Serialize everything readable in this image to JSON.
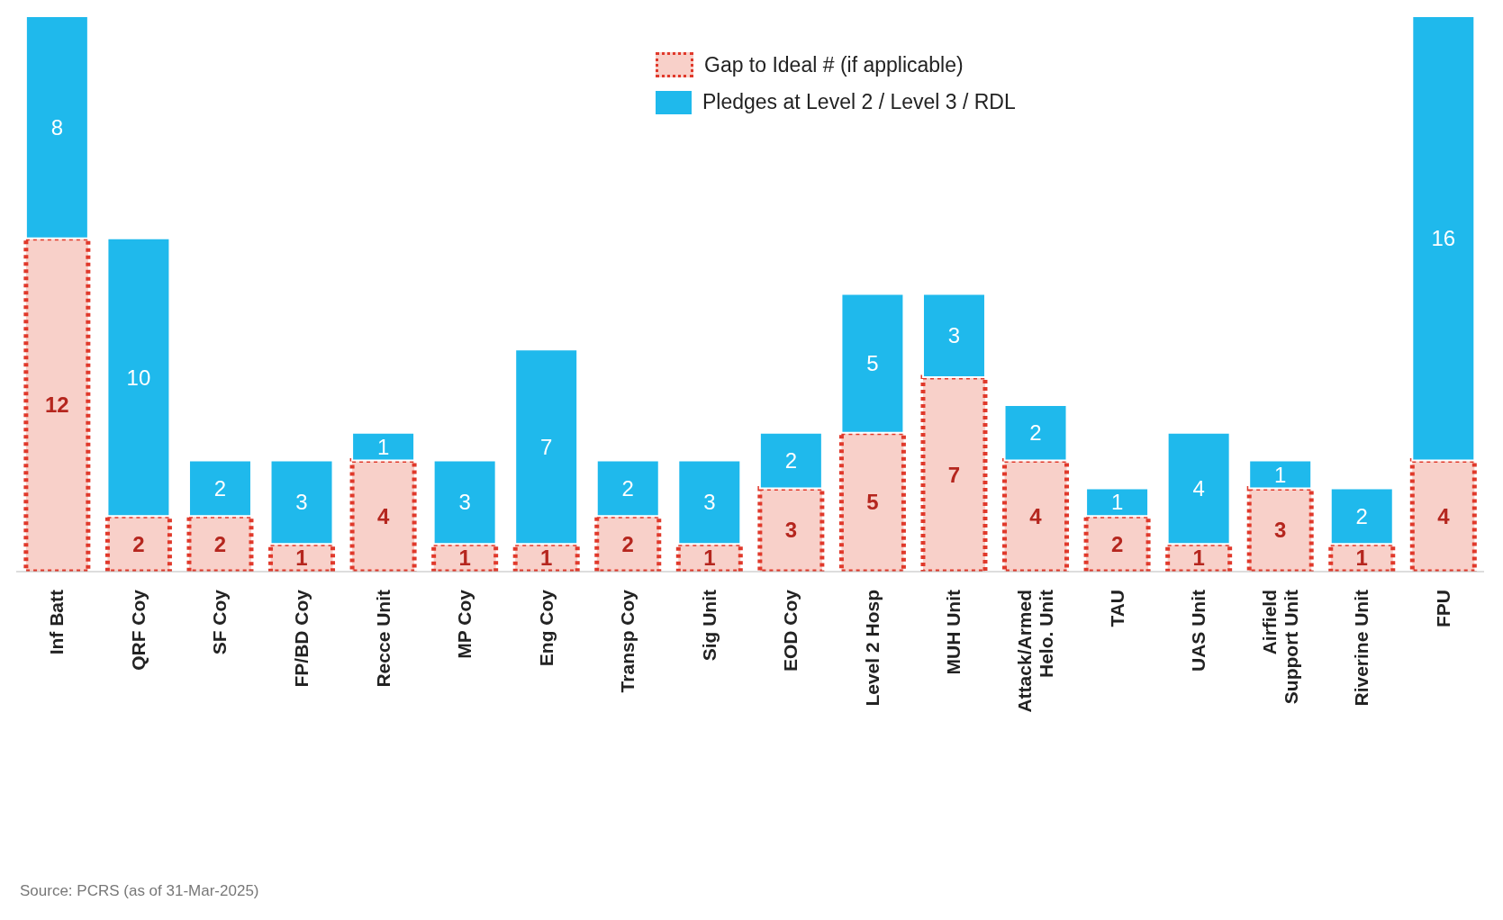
{
  "chart_data": {
    "type": "bar",
    "stacked": true,
    "data_labels": true,
    "legend": "top",
    "grid": false,
    "categories": [
      "Inf Batt",
      "QRF Coy",
      "SF Coy",
      "FP/BD Coy",
      "Recce Unit",
      "MP Coy",
      "Eng Coy",
      "Transp Coy",
      "Sig Unit",
      "EOD Coy",
      "Level 2 Hosp",
      "MUH Unit",
      "Attack/Armed Helo. Unit",
      "TAU",
      "UAS Unit",
      "Airfield Support Unit",
      "Riverine Unit",
      "FPU"
    ],
    "series": [
      {
        "name": "Gap to Ideal #  (if applicable)",
        "color": "#f8d0c9",
        "values": [
          12,
          2,
          2,
          1,
          4,
          1,
          1,
          2,
          1,
          3,
          5,
          7,
          4,
          2,
          1,
          3,
          1,
          4
        ]
      },
      {
        "name": "Pledges at Level 2 / Level 3 / RDL",
        "color": "#1fb9ec",
        "values": [
          8,
          10,
          2,
          3,
          1,
          3,
          7,
          2,
          3,
          2,
          5,
          3,
          2,
          1,
          4,
          1,
          2,
          16
        ]
      }
    ],
    "annotations": [
      "Source: PCRS (as of 31-Mar-2025)"
    ]
  }
}
